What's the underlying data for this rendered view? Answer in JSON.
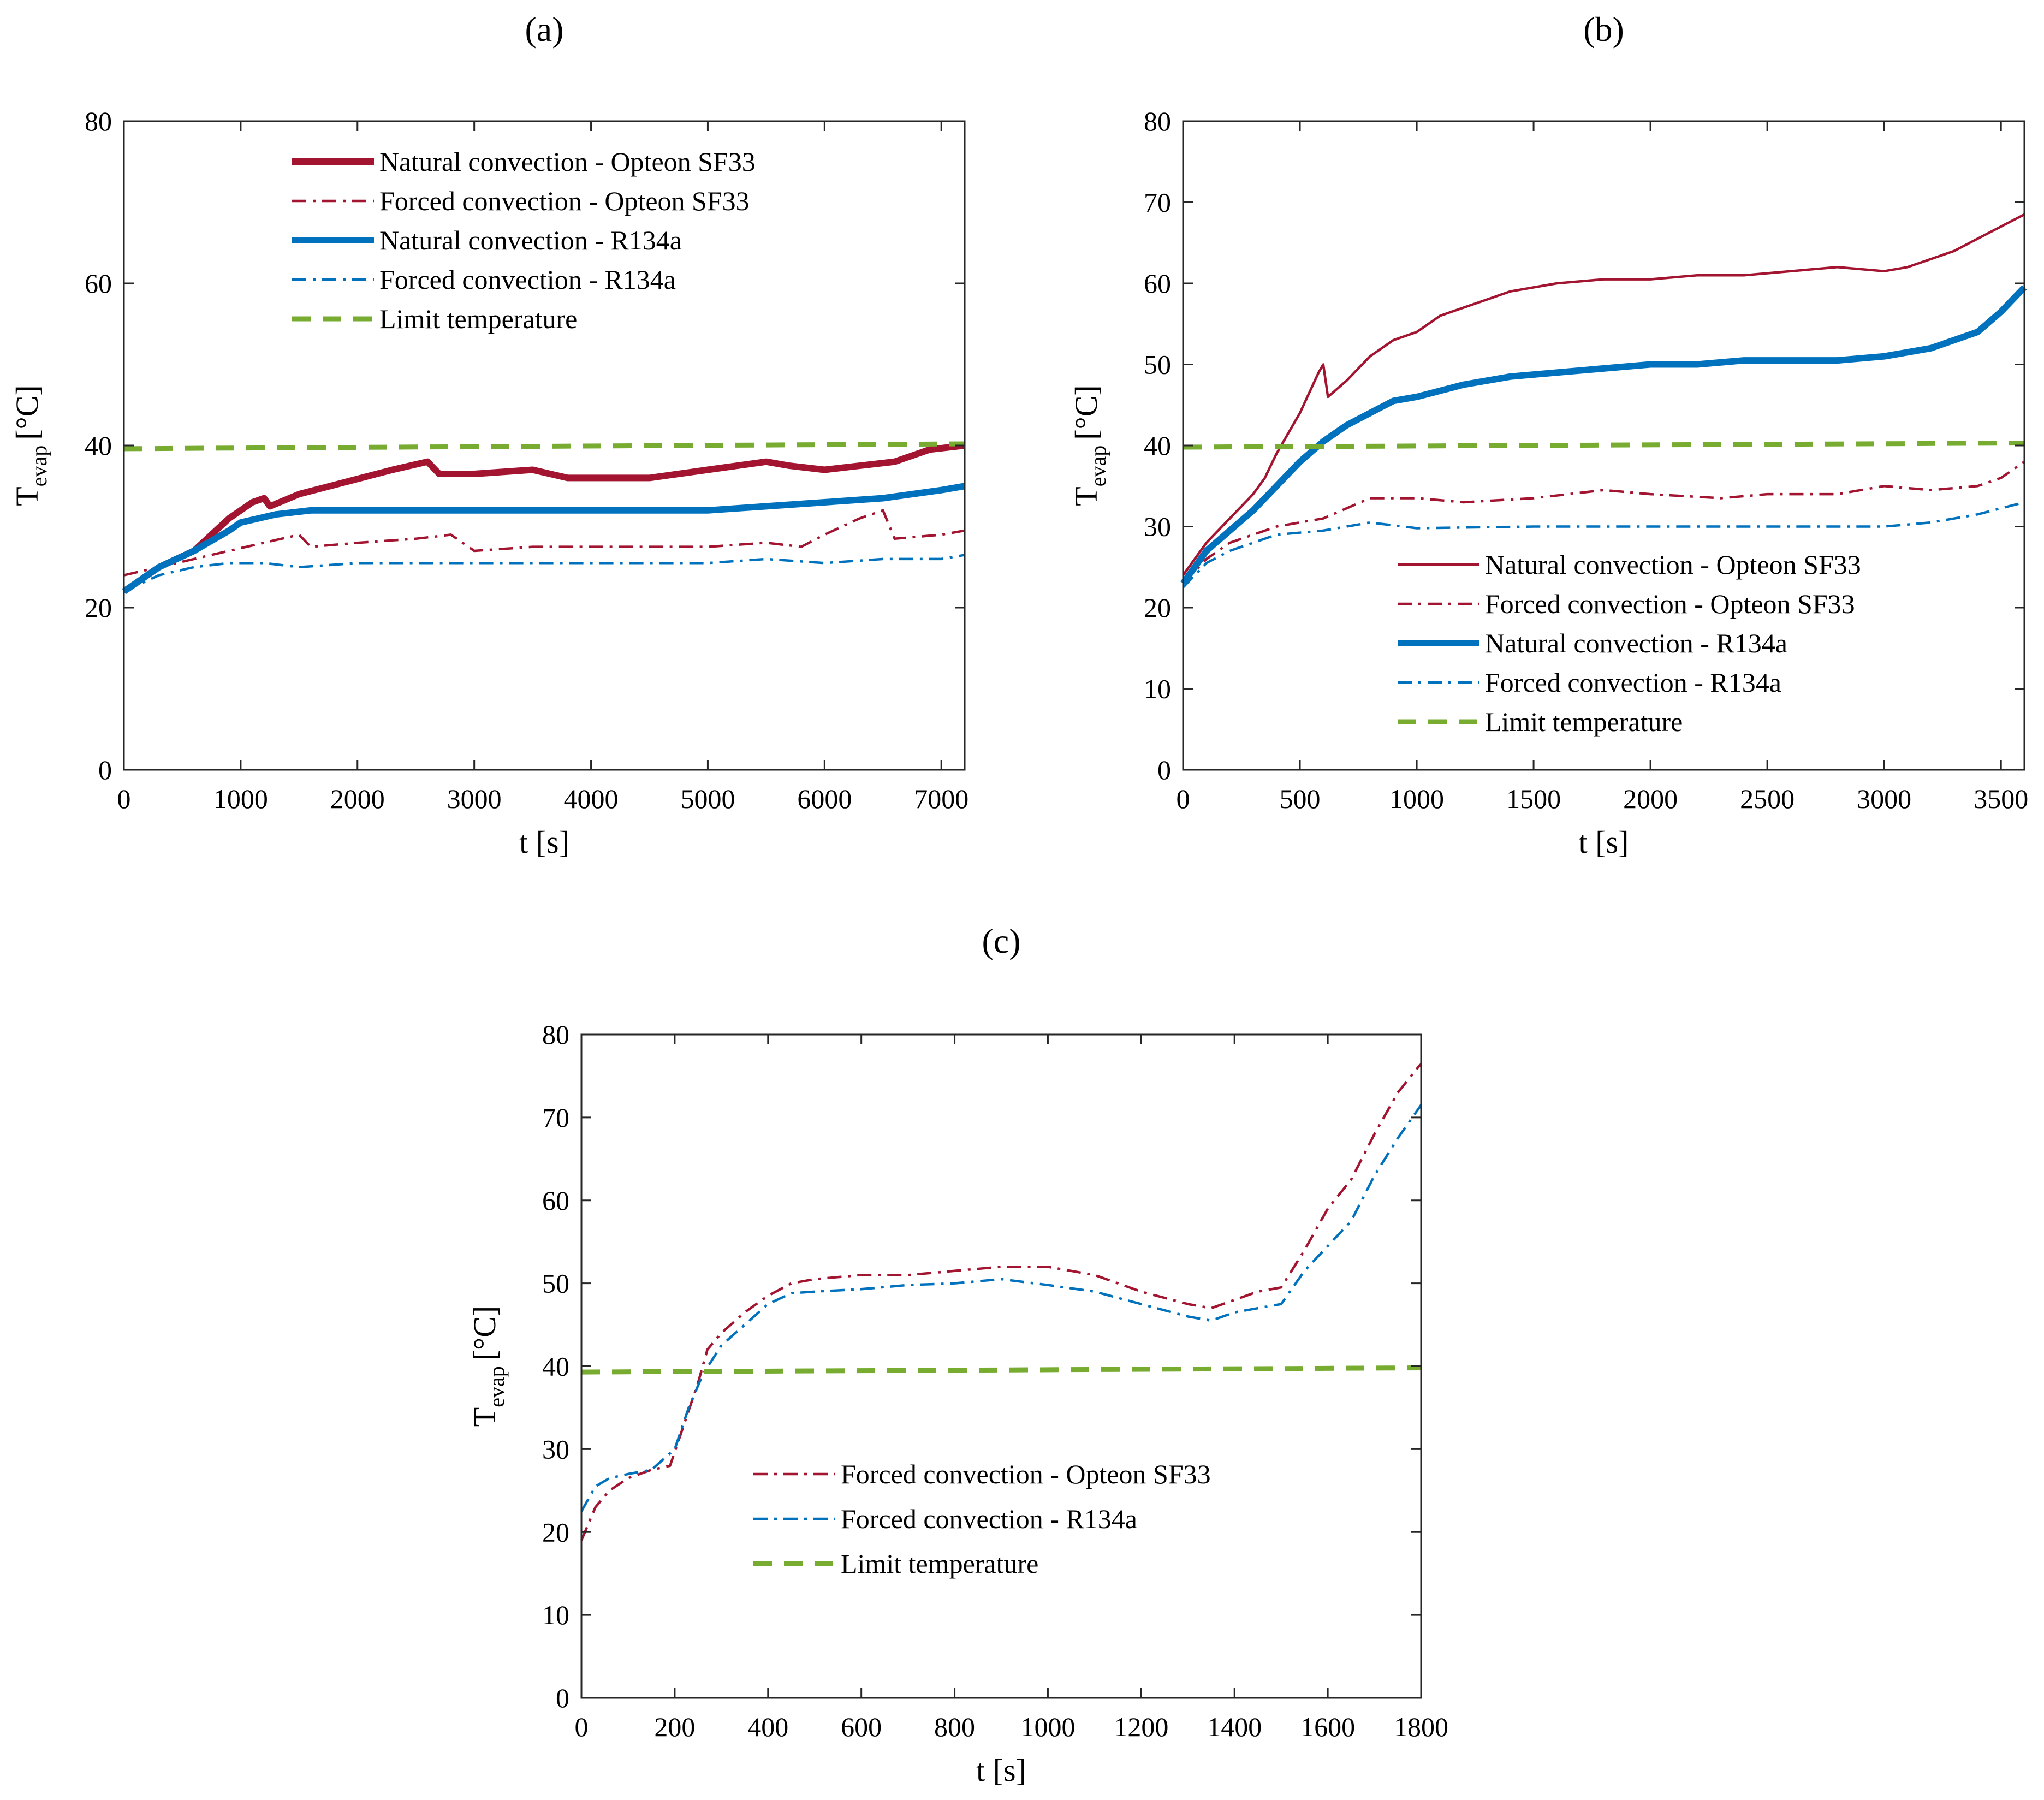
{
  "colors": {
    "opteon": "#A2142F",
    "r134a": "#0072BD",
    "limit": "#77AC30",
    "axis": "#262626"
  },
  "chart_data": [
    {
      "id": "a",
      "panel_label": "(a)",
      "type": "line",
      "xlabel": "t [s]",
      "ylabel_main": "T",
      "ylabel_sub": "evap",
      "ylabel_unit": "[°C]",
      "xlim": [
        0,
        7200
      ],
      "ylim": [
        0,
        80
      ],
      "xticks": [
        0,
        1000,
        2000,
        3000,
        4000,
        5000,
        6000,
        7000
      ],
      "yticks": [
        0,
        20,
        40,
        60,
        80
      ],
      "legend_position": "top-center",
      "series": [
        {
          "name": "Natural convection - Opteon SF33",
          "color_key": "opteon",
          "style": "solid-thick",
          "x": [
            0,
            300,
            600,
            900,
            1100,
            1200,
            1250,
            1500,
            1900,
            2300,
            2600,
            2700,
            3000,
            3500,
            3800,
            4000,
            4500,
            5000,
            5500,
            5700,
            6000,
            6300,
            6600,
            6900,
            7200
          ],
          "y": [
            22,
            25,
            27,
            31,
            33,
            33.5,
            32.5,
            34,
            35.5,
            37,
            38,
            36.5,
            36.5,
            37,
            36,
            36,
            36,
            37,
            38,
            37.5,
            37,
            37.5,
            38,
            39.5,
            40
          ]
        },
        {
          "name": "Forced convection - Opteon SF33",
          "color_key": "opteon",
          "style": "dashdot-thin",
          "x": [
            0,
            300,
            600,
            900,
            1200,
            1500,
            1600,
            2000,
            2500,
            2800,
            3000,
            3500,
            4000,
            4500,
            5000,
            5500,
            5800,
            6000,
            6300,
            6500,
            6600,
            7000,
            7200
          ],
          "y": [
            24,
            25,
            26,
            27,
            28,
            29,
            27.5,
            28,
            28.5,
            29,
            27,
            27.5,
            27.5,
            27.5,
            27.5,
            28,
            27.5,
            29,
            31,
            32,
            28.5,
            29,
            29.5
          ]
        },
        {
          "name": "Natural convection - R134a",
          "color_key": "r134a",
          "style": "solid-thick",
          "x": [
            0,
            300,
            600,
            900,
            1000,
            1300,
            1600,
            2000,
            2500,
            3000,
            3500,
            4000,
            4500,
            5000,
            5500,
            6000,
            6500,
            7000,
            7200
          ],
          "y": [
            22,
            25,
            27,
            29.5,
            30.5,
            31.5,
            32,
            32,
            32,
            32,
            32,
            32,
            32,
            32,
            32.5,
            33,
            33.5,
            34.5,
            35
          ]
        },
        {
          "name": "Forced convection - R134a",
          "color_key": "r134a",
          "style": "dashdot-thin",
          "x": [
            0,
            300,
            600,
            900,
            1200,
            1500,
            2000,
            2500,
            3000,
            3500,
            4000,
            4500,
            5000,
            5500,
            6000,
            6500,
            7000,
            7200
          ],
          "y": [
            22,
            24,
            25,
            25.5,
            25.5,
            25,
            25.5,
            25.5,
            25.5,
            25.5,
            25.5,
            25.5,
            25.5,
            26,
            25.5,
            26,
            26,
            26.5
          ]
        },
        {
          "name": "Limit temperature",
          "color_key": "limit",
          "style": "dashed-thick",
          "x": [
            0,
            7200
          ],
          "y": [
            39.6,
            40.2
          ]
        }
      ]
    },
    {
      "id": "b",
      "panel_label": "(b)",
      "type": "line",
      "xlabel": "t [s]",
      "ylabel_main": "T",
      "ylabel_sub": "evap",
      "ylabel_unit": "[°C]",
      "xlim": [
        0,
        3600
      ],
      "ylim": [
        0,
        80
      ],
      "xticks": [
        0,
        500,
        1000,
        1500,
        2000,
        2500,
        3000,
        3500
      ],
      "yticks": [
        0,
        10,
        20,
        30,
        40,
        50,
        60,
        70,
        80
      ],
      "legend_position": "bottom-right",
      "series": [
        {
          "name": "Natural convection - Opteon SF33",
          "color_key": "opteon",
          "style": "solid-thin",
          "x": [
            0,
            100,
            200,
            300,
            350,
            400,
            500,
            580,
            600,
            620,
            700,
            800,
            900,
            1000,
            1100,
            1200,
            1300,
            1400,
            1500,
            1600,
            1800,
            2000,
            2200,
            2400,
            2600,
            2800,
            3000,
            3100,
            3200,
            3300,
            3400,
            3500,
            3600
          ],
          "y": [
            24,
            28,
            31,
            34,
            36,
            39,
            44,
            49,
            50,
            46,
            48,
            51,
            53,
            54,
            56,
            57,
            58,
            59,
            59.5,
            60,
            60.5,
            60.5,
            61,
            61,
            61.5,
            62,
            61.5,
            62,
            63,
            64,
            65.5,
            67,
            68.5
          ]
        },
        {
          "name": "Forced convection - Opteon SF33",
          "color_key": "opteon",
          "style": "dashdot-thin",
          "x": [
            0,
            100,
            200,
            300,
            400,
            600,
            800,
            1000,
            1200,
            1500,
            1800,
            2000,
            2300,
            2500,
            2800,
            3000,
            3200,
            3400,
            3500,
            3600
          ],
          "y": [
            23,
            26,
            28,
            29,
            30,
            31,
            33.5,
            33.5,
            33,
            33.5,
            34.5,
            34,
            33.5,
            34,
            34,
            35,
            34.5,
            35,
            36,
            38
          ]
        },
        {
          "name": "Natural convection - R134a",
          "color_key": "r134a",
          "style": "solid-thick",
          "x": [
            0,
            100,
            200,
            300,
            400,
            500,
            600,
            700,
            800,
            900,
            1000,
            1200,
            1400,
            1600,
            1800,
            2000,
            2200,
            2400,
            2600,
            2800,
            3000,
            3200,
            3400,
            3500,
            3600
          ],
          "y": [
            23,
            27,
            29.5,
            32,
            35,
            38,
            40.5,
            42.5,
            44,
            45.5,
            46,
            47.5,
            48.5,
            49,
            49.5,
            50,
            50,
            50.5,
            50.5,
            50.5,
            51,
            52,
            54,
            56.5,
            59.5
          ]
        },
        {
          "name": "Forced convection - R134a",
          "color_key": "r134a",
          "style": "dashdot-thin",
          "x": [
            0,
            100,
            200,
            300,
            400,
            600,
            800,
            1000,
            1500,
            2000,
            2500,
            3000,
            3200,
            3400,
            3600
          ],
          "y": [
            22.5,
            25.5,
            27,
            28,
            29,
            29.5,
            30.5,
            29.8,
            30,
            30,
            30,
            30,
            30.5,
            31.5,
            33
          ]
        },
        {
          "name": "Limit temperature",
          "color_key": "limit",
          "style": "dashed-thick",
          "x": [
            0,
            3600
          ],
          "y": [
            39.8,
            40.3
          ]
        }
      ]
    },
    {
      "id": "c",
      "panel_label": "(c)",
      "type": "line",
      "xlabel": "t [s]",
      "ylabel_main": "T",
      "ylabel_sub": "evap",
      "ylabel_unit": "[°C]",
      "xlim": [
        0,
        1800
      ],
      "ylim": [
        0,
        80
      ],
      "xticks": [
        0,
        200,
        400,
        600,
        800,
        1000,
        1200,
        1400,
        1600,
        1800
      ],
      "yticks": [
        0,
        10,
        20,
        30,
        40,
        50,
        60,
        70,
        80
      ],
      "legend_position": "bottom-center",
      "series": [
        {
          "name": "Forced convection - Opteon SF33",
          "color_key": "opteon",
          "style": "dashdot-thin",
          "x": [
            0,
            30,
            60,
            100,
            150,
            190,
            220,
            250,
            270,
            300,
            350,
            400,
            450,
            500,
            600,
            700,
            800,
            900,
            1000,
            1100,
            1200,
            1300,
            1350,
            1400,
            1450,
            1500,
            1550,
            1600,
            1650,
            1700,
            1750,
            1800
          ],
          "y": [
            19,
            23,
            25,
            26.5,
            27.5,
            28,
            33,
            38,
            42,
            44,
            46.5,
            48.5,
            50,
            50.5,
            51,
            51,
            51.5,
            52,
            52,
            51,
            49,
            47.5,
            47,
            48,
            49,
            49.5,
            54,
            59,
            62.5,
            68,
            73,
            76.5
          ]
        },
        {
          "name": "Forced convection - R134a",
          "color_key": "r134a",
          "style": "dashdot-thin",
          "x": [
            0,
            30,
            60,
            100,
            150,
            200,
            230,
            260,
            300,
            350,
            400,
            450,
            500,
            600,
            700,
            800,
            900,
            1000,
            1100,
            1200,
            1300,
            1350,
            1400,
            1450,
            1500,
            1550,
            1600,
            1650,
            1700,
            1750,
            1800
          ],
          "y": [
            22.5,
            25.5,
            26.5,
            27,
            27.5,
            30,
            35,
            39,
            42.5,
            45,
            47.5,
            48.8,
            49,
            49.3,
            49.8,
            50,
            50.5,
            49.8,
            49,
            47.5,
            46,
            45.5,
            46.5,
            47,
            47.5,
            51.5,
            54.5,
            57.5,
            63,
            67.5,
            71.5
          ]
        },
        {
          "name": "Limit temperature",
          "color_key": "limit",
          "style": "dashed-thick",
          "x": [
            0,
            1800
          ],
          "y": [
            39.3,
            39.8
          ]
        }
      ]
    }
  ]
}
